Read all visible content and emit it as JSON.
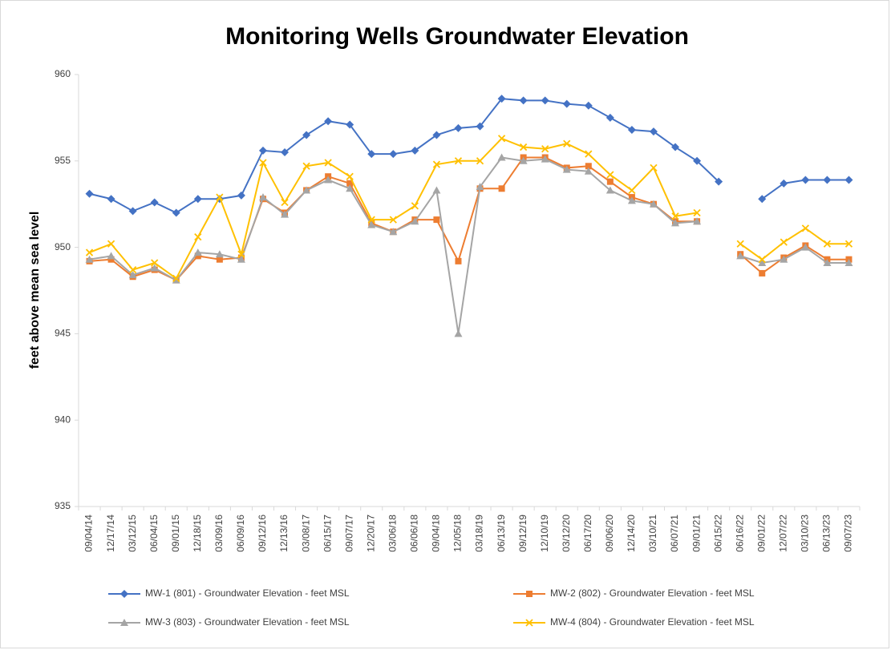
{
  "chart_data": {
    "type": "line",
    "title": "Monitoring Wells Groundwater Elevation",
    "y_label": "feet above mean sea level",
    "categories": [
      "09/04/14",
      "12/17/14",
      "03/12/15",
      "06/04/15",
      "09/01/15",
      "12/18/15",
      "03/09/16",
      "06/09/16",
      "09/12/16",
      "12/13/16",
      "03/08/17",
      "06/15/17",
      "09/07/17",
      "12/20/17",
      "03/06/18",
      "06/06/18",
      "09/04/18",
      "12/05/18",
      "03/18/19",
      "06/13/19",
      "09/12/19",
      "12/10/19",
      "03/12/20",
      "06/17/20",
      "09/06/20",
      "12/14/20",
      "03/10/21",
      "06/07/21",
      "09/01/21",
      "06/15/22",
      "06/16/22",
      "09/01/22",
      "12/07/22",
      "03/10/23",
      "06/13/23",
      "09/07/23"
    ],
    "series": [
      {
        "name": "MW-1 (801) - Groundwater Elevation - feet MSL",
        "color": "#4472c4",
        "marker": "diamond",
        "values": [
          953.1,
          952.8,
          952.1,
          952.6,
          952.0,
          952.8,
          952.8,
          953.0,
          955.6,
          955.5,
          956.5,
          957.3,
          957.1,
          955.4,
          955.4,
          955.6,
          956.5,
          956.9,
          957.0,
          958.6,
          958.5,
          958.5,
          958.3,
          958.2,
          957.5,
          956.8,
          956.7,
          955.8,
          955.0,
          953.8,
          null,
          952.8,
          953.7,
          953.9,
          953.9,
          953.9
        ]
      },
      {
        "name": "MW-2 (802) - Groundwater Elevation - feet MSL",
        "color": "#ed7d31",
        "marker": "square",
        "values": [
          949.2,
          949.3,
          948.3,
          948.7,
          948.1,
          949.5,
          949.3,
          949.4,
          952.8,
          952.0,
          953.3,
          954.1,
          953.7,
          951.4,
          950.9,
          951.6,
          951.6,
          949.2,
          953.4,
          953.4,
          955.2,
          955.2,
          954.6,
          954.7,
          953.8,
          952.9,
          952.5,
          951.5,
          951.5,
          null,
          949.6,
          948.5,
          949.4,
          950.1,
          949.3,
          949.3
        ]
      },
      {
        "name": "MW-3 (803) - Groundwater Elevation - feet MSL",
        "color": "#a5a5a5",
        "marker": "triangle",
        "values": [
          949.3,
          949.5,
          948.4,
          948.8,
          948.1,
          949.7,
          949.6,
          949.3,
          952.9,
          951.9,
          953.3,
          953.9,
          953.4,
          951.3,
          950.9,
          951.5,
          953.3,
          945.0,
          953.5,
          955.2,
          955.0,
          955.1,
          954.5,
          954.4,
          953.3,
          952.7,
          952.5,
          951.4,
          951.5,
          null,
          949.5,
          949.1,
          949.3,
          950.0,
          949.1,
          949.1
        ]
      },
      {
        "name": "MW-4 (804) - Groundwater Elevation - feet MSL",
        "color": "#ffc000",
        "marker": "x",
        "values": [
          949.7,
          950.2,
          948.7,
          949.1,
          948.2,
          950.6,
          952.9,
          949.6,
          954.9,
          952.6,
          954.7,
          954.9,
          954.1,
          951.6,
          951.6,
          952.4,
          954.8,
          955.0,
          955.0,
          956.3,
          955.8,
          955.7,
          956.0,
          955.4,
          954.2,
          953.3,
          954.6,
          951.8,
          952.0,
          null,
          950.2,
          949.3,
          950.3,
          951.1,
          950.2,
          950.2
        ]
      }
    ],
    "ylim": [
      935,
      960
    ],
    "yticks": [
      935,
      940,
      945,
      950,
      955,
      960
    ],
    "grid": false,
    "legend": "bottom"
  }
}
